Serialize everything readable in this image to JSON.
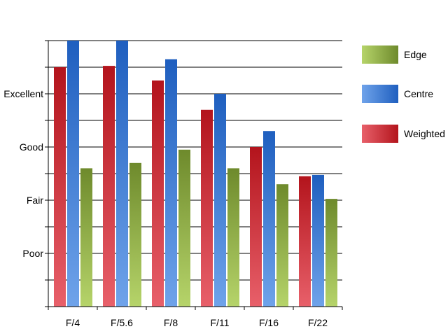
{
  "chart_data": {
    "type": "bar",
    "title": "",
    "xlabel": "",
    "ylabel": "",
    "categories": [
      "F/4",
      "F/5.6",
      "F/8",
      "F/11",
      "F/16",
      "F/22"
    ],
    "y_tick_labels": [
      {
        "label": "Poor",
        "value": 2
      },
      {
        "label": "Fair",
        "value": 4
      },
      {
        "label": "Good",
        "value": 6
      },
      {
        "label": "Excellent",
        "value": 8
      }
    ],
    "ylim": [
      0,
      10
    ],
    "grid": true,
    "legend_position": "right",
    "series": [
      {
        "name": "Weighted",
        "values": [
          9.0,
          9.05,
          8.5,
          7.4,
          6.0,
          4.9
        ],
        "colors": {
          "light": "#e8606a",
          "dark": "#b3141c"
        }
      },
      {
        "name": "Centre",
        "values": [
          10.0,
          10.0,
          9.3,
          8.0,
          6.6,
          4.95
        ],
        "colors": {
          "light": "#6fa3ea",
          "dark": "#1f5fbf"
        }
      },
      {
        "name": "Edge",
        "values": [
          5.2,
          5.4,
          5.9,
          5.2,
          4.6,
          4.05
        ],
        "colors": {
          "light": "#b6d46a",
          "dark": "#6e8a2c"
        }
      }
    ],
    "legend_order": [
      "Edge",
      "Centre",
      "Weighted"
    ]
  }
}
